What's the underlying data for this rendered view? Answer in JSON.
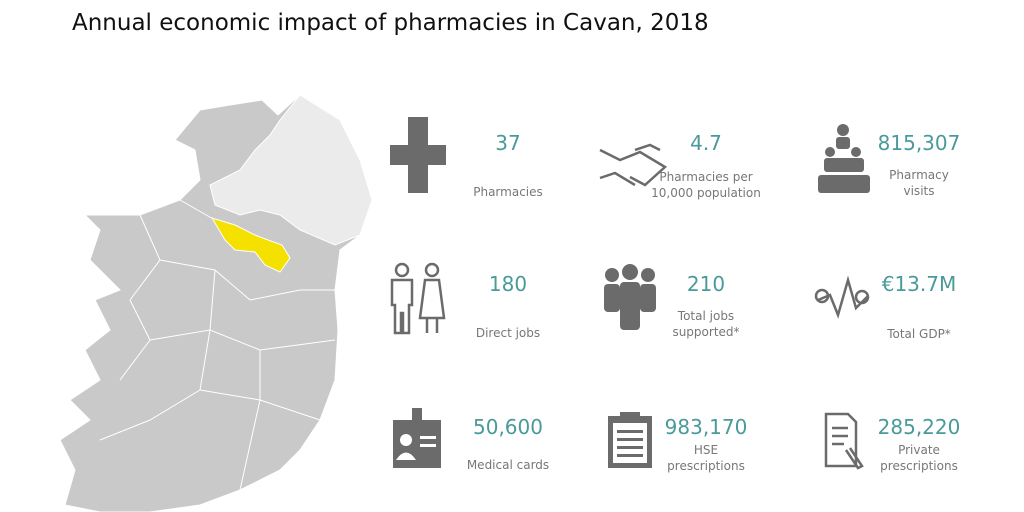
{
  "title": "Annual economic impact of pharmacies in Cavan, 2018",
  "stats": [
    {
      "value": "37",
      "label": [
        "Pharmacies"
      ]
    },
    {
      "value": "4.7",
      "label": [
        "Pharmacies per",
        "10,000 population"
      ]
    },
    {
      "value": "815,307",
      "label": [
        "Pharmacy",
        "visits"
      ]
    },
    {
      "value": "180",
      "label": [
        "Direct jobs"
      ]
    },
    {
      "value": "210",
      "label": [
        "Total jobs",
        "supported*"
      ]
    },
    {
      "value": "€13.7M",
      "label": [
        "Total GDP*"
      ]
    },
    {
      "value": "50,600",
      "label": [
        "Medical cards"
      ]
    },
    {
      "value": "983,170",
      "label": [
        "HSE",
        "prescriptions"
      ]
    },
    {
      "value": "285,220",
      "label": [
        "Private",
        "prescriptions"
      ]
    }
  ]
}
